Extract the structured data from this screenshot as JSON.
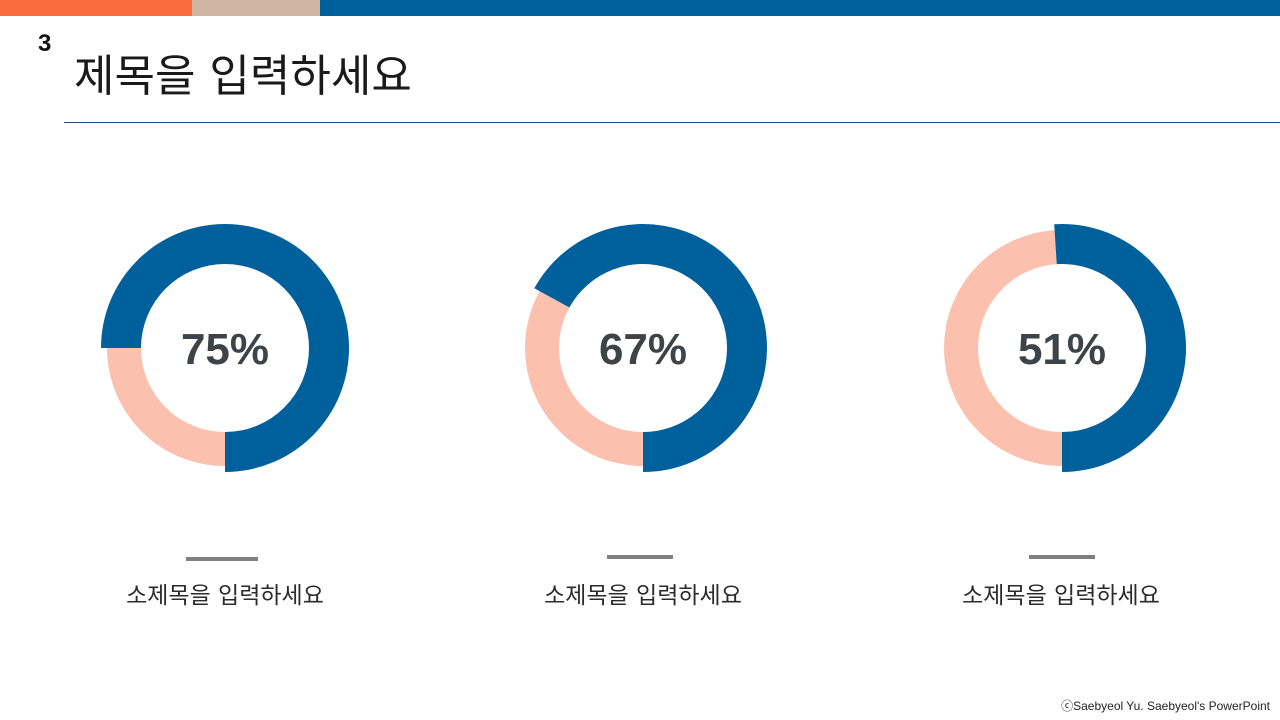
{
  "slide": {
    "number": "3",
    "title": "제목을 입력하세요",
    "copyright": "ⓒSaebyeol Yu. Saebyeol's PowerPoint"
  },
  "colors": {
    "primary": "#00609c",
    "secondary": "#fbc1ae",
    "accent_orange": "#f96b3d",
    "accent_tan": "#ceb5a4",
    "label_text": "#3e4348",
    "dash": "#808080",
    "rule": "#1f4f73"
  },
  "chart_data": [
    {
      "type": "pie",
      "label": "75%",
      "values": [
        75,
        25
      ],
      "subtitle": "소제목을 입력하세요"
    },
    {
      "type": "pie",
      "label": "67%",
      "values": [
        67,
        33
      ],
      "subtitle": "소제목을 입력하세요"
    },
    {
      "type": "pie",
      "label": "51%",
      "values": [
        51,
        49
      ],
      "subtitle": "소제목을 입력하세요"
    }
  ]
}
